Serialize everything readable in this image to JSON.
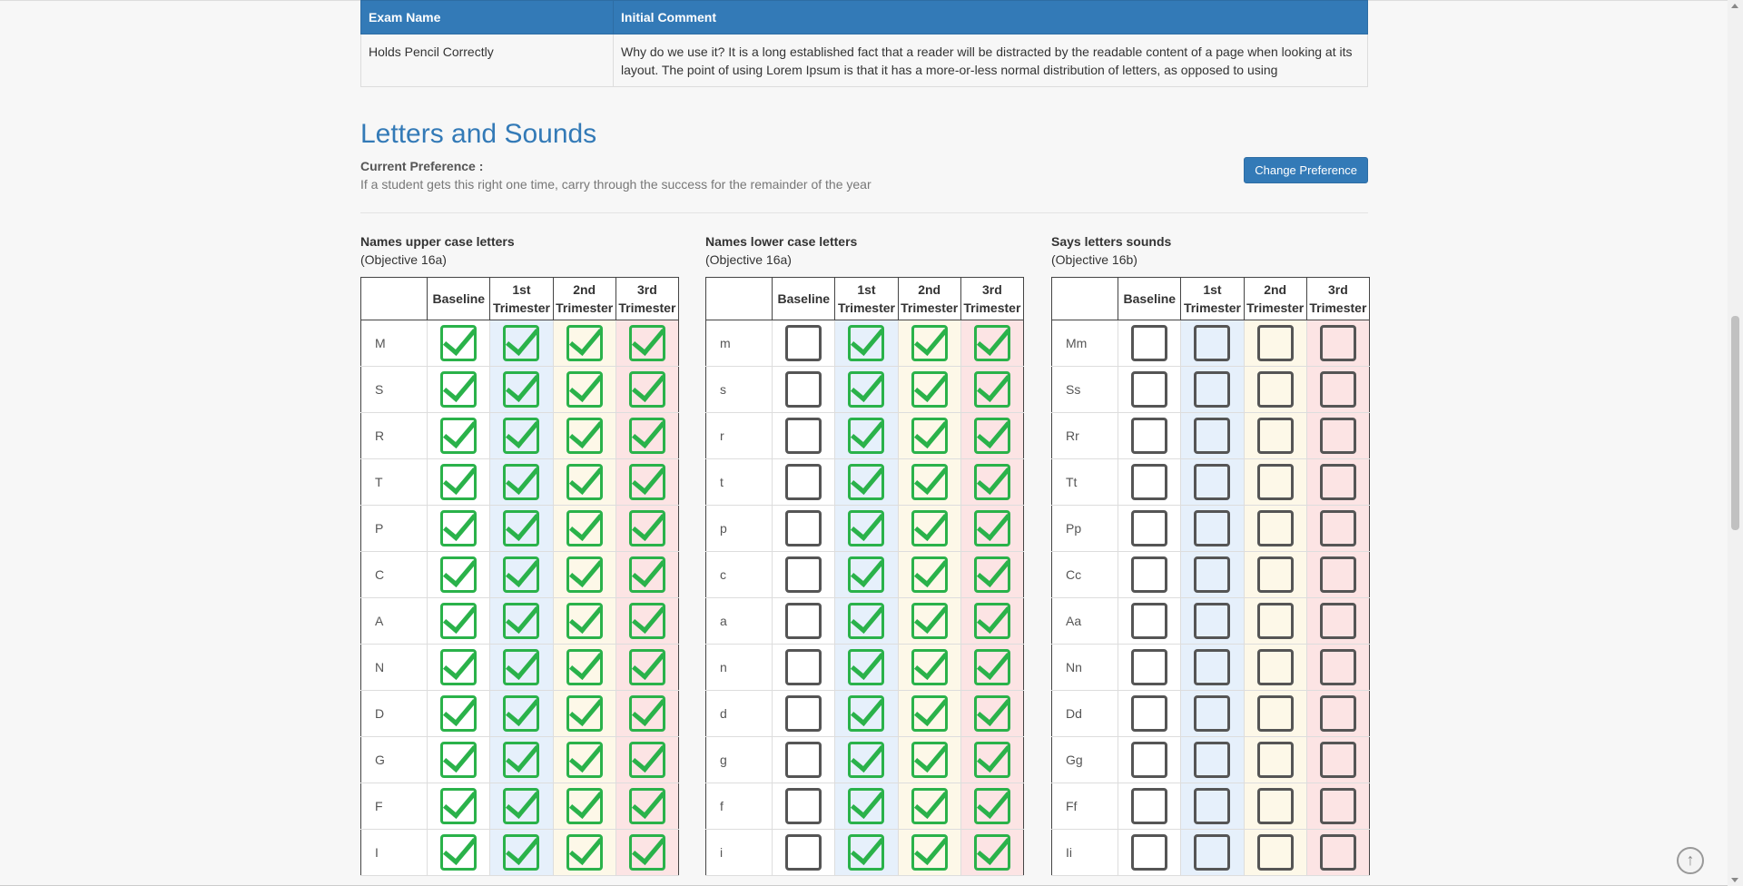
{
  "exam_table": {
    "headers": [
      "Exam Name",
      "Initial Comment"
    ],
    "rows": [
      {
        "name": "Holds Pencil Correctly",
        "comment": "Why do we use it? It is a long established fact that a reader will be distracted by the readable content of a page when looking at its layout. The point of using Lorem Ipsum is that it has a more-or-less normal distribution of letters, as opposed to using"
      }
    ]
  },
  "section": {
    "title": "Letters and Sounds",
    "pref_label": "Current Preference :",
    "pref_text": "If a student gets this right one time, carry through the success for the remainder of the year",
    "change_button": "Change Preference"
  },
  "columns": {
    "baseline": "Baseline",
    "t1a": "1st",
    "t1b": "Trimester",
    "t2a": "2nd",
    "t2b": "Trimester",
    "t3a": "3rd",
    "t3b": "Trimester"
  },
  "grids": [
    {
      "title": "Names upper case letters",
      "objective": "(Objective 16a)",
      "rows": [
        {
          "label": "M",
          "checks": [
            true,
            true,
            true,
            true
          ]
        },
        {
          "label": "S",
          "checks": [
            true,
            true,
            true,
            true
          ]
        },
        {
          "label": "R",
          "checks": [
            true,
            true,
            true,
            true
          ]
        },
        {
          "label": "T",
          "checks": [
            true,
            true,
            true,
            true
          ]
        },
        {
          "label": "P",
          "checks": [
            true,
            true,
            true,
            true
          ]
        },
        {
          "label": "C",
          "checks": [
            true,
            true,
            true,
            true
          ]
        },
        {
          "label": "A",
          "checks": [
            true,
            true,
            true,
            true
          ]
        },
        {
          "label": "N",
          "checks": [
            true,
            true,
            true,
            true
          ]
        },
        {
          "label": "D",
          "checks": [
            true,
            true,
            true,
            true
          ]
        },
        {
          "label": "G",
          "checks": [
            true,
            true,
            true,
            true
          ]
        },
        {
          "label": "F",
          "checks": [
            true,
            true,
            true,
            true
          ]
        },
        {
          "label": "I",
          "checks": [
            true,
            true,
            true,
            true
          ]
        }
      ]
    },
    {
      "title": "Names lower case letters",
      "objective": "(Objective 16a)",
      "rows": [
        {
          "label": "m",
          "checks": [
            false,
            true,
            true,
            true
          ]
        },
        {
          "label": "s",
          "checks": [
            false,
            true,
            true,
            true
          ]
        },
        {
          "label": "r",
          "checks": [
            false,
            true,
            true,
            true
          ]
        },
        {
          "label": "t",
          "checks": [
            false,
            true,
            true,
            true
          ]
        },
        {
          "label": "p",
          "checks": [
            false,
            true,
            true,
            true
          ]
        },
        {
          "label": "c",
          "checks": [
            false,
            true,
            true,
            true
          ]
        },
        {
          "label": "a",
          "checks": [
            false,
            true,
            true,
            true
          ]
        },
        {
          "label": "n",
          "checks": [
            false,
            true,
            true,
            true
          ]
        },
        {
          "label": "d",
          "checks": [
            false,
            true,
            true,
            true
          ]
        },
        {
          "label": "g",
          "checks": [
            false,
            true,
            true,
            true
          ]
        },
        {
          "label": "f",
          "checks": [
            false,
            true,
            true,
            true
          ]
        },
        {
          "label": "i",
          "checks": [
            false,
            true,
            true,
            true
          ]
        }
      ]
    },
    {
      "title": "Says letters sounds",
      "objective": "(Objective 16b)",
      "rows": [
        {
          "label": "Mm",
          "checks": [
            false,
            false,
            false,
            false
          ]
        },
        {
          "label": "Ss",
          "checks": [
            false,
            false,
            false,
            false
          ]
        },
        {
          "label": "Rr",
          "checks": [
            false,
            false,
            false,
            false
          ]
        },
        {
          "label": "Tt",
          "checks": [
            false,
            false,
            false,
            false
          ]
        },
        {
          "label": "Pp",
          "checks": [
            false,
            false,
            false,
            false
          ]
        },
        {
          "label": "Cc",
          "checks": [
            false,
            false,
            false,
            false
          ]
        },
        {
          "label": "Aa",
          "checks": [
            false,
            false,
            false,
            false
          ]
        },
        {
          "label": "Nn",
          "checks": [
            false,
            false,
            false,
            false
          ]
        },
        {
          "label": "Dd",
          "checks": [
            false,
            false,
            false,
            false
          ]
        },
        {
          "label": "Gg",
          "checks": [
            false,
            false,
            false,
            false
          ]
        },
        {
          "label": "Ff",
          "checks": [
            false,
            false,
            false,
            false
          ]
        },
        {
          "label": "Ii",
          "checks": [
            false,
            false,
            false,
            false
          ]
        }
      ]
    }
  ],
  "colors": {
    "accent": "#337ab7",
    "check_green": "#2ab24a",
    "baseline_bg": "#ffffff",
    "t1_bg": "#e6f0fb",
    "t2_bg": "#fdf8e8",
    "t3_bg": "#fce4e4"
  },
  "icons": {
    "scroll_top": "arrow-up-circle-icon",
    "checked": "checkmark-icon"
  }
}
